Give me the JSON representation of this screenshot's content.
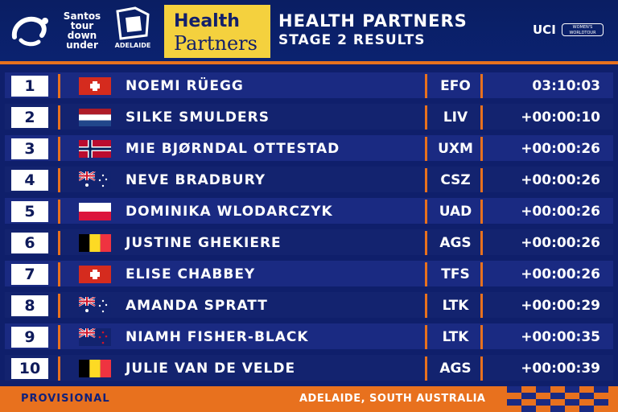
{
  "header": {
    "tdu_logo_text": [
      "Santos",
      "tour",
      "down",
      "under"
    ],
    "adelaide_logo_text": "ADELAIDE",
    "sponsor_line1": "Health",
    "sponsor_line2": "Partners",
    "title": "HEALTH PARTNERS",
    "subtitle": "STAGE 2 RESULTS",
    "uci_label": "UCI",
    "uci_badge_text": "WOMEN'S WORLDTOUR"
  },
  "results": [
    {
      "pos": "1",
      "flag": "switzerland",
      "name": "NOEMI RÜEGG",
      "team": "EFO",
      "time": "03:10:03"
    },
    {
      "pos": "2",
      "flag": "netherlands",
      "name": "SILKE SMULDERS",
      "team": "LIV",
      "time": "+00:00:10"
    },
    {
      "pos": "3",
      "flag": "norway",
      "name": "MIE BJØRNDAL OTTESTAD",
      "team": "UXM",
      "time": "+00:00:26"
    },
    {
      "pos": "4",
      "flag": "australia",
      "name": "NEVE BRADBURY",
      "team": "CSZ",
      "time": "+00:00:26"
    },
    {
      "pos": "5",
      "flag": "poland",
      "name": "DOMINIKA WLODARCZYK",
      "team": "UAD",
      "time": "+00:00:26"
    },
    {
      "pos": "6",
      "flag": "belgium",
      "name": "JUSTINE GHEKIERE",
      "team": "AGS",
      "time": "+00:00:26"
    },
    {
      "pos": "7",
      "flag": "switzerland",
      "name": "ELISE CHABBEY",
      "team": "TFS",
      "time": "+00:00:26"
    },
    {
      "pos": "8",
      "flag": "australia",
      "name": "AMANDA SPRATT",
      "team": "LTK",
      "time": "+00:00:29"
    },
    {
      "pos": "9",
      "flag": "new-zealand",
      "name": "NIAMH FISHER-BLACK",
      "team": "LTK",
      "time": "+00:00:35"
    },
    {
      "pos": "10",
      "flag": "belgium",
      "name": "JULIE VAN DE VELDE",
      "team": "AGS",
      "time": "+00:00:39"
    }
  ],
  "footer": {
    "status": "PROVISIONAL",
    "location": "ADELAIDE, SOUTH AUSTRALIA"
  },
  "colors": {
    "background": "#0f1f6b",
    "accent": "#e8711e",
    "sponsor_yellow": "#f4d13e"
  }
}
